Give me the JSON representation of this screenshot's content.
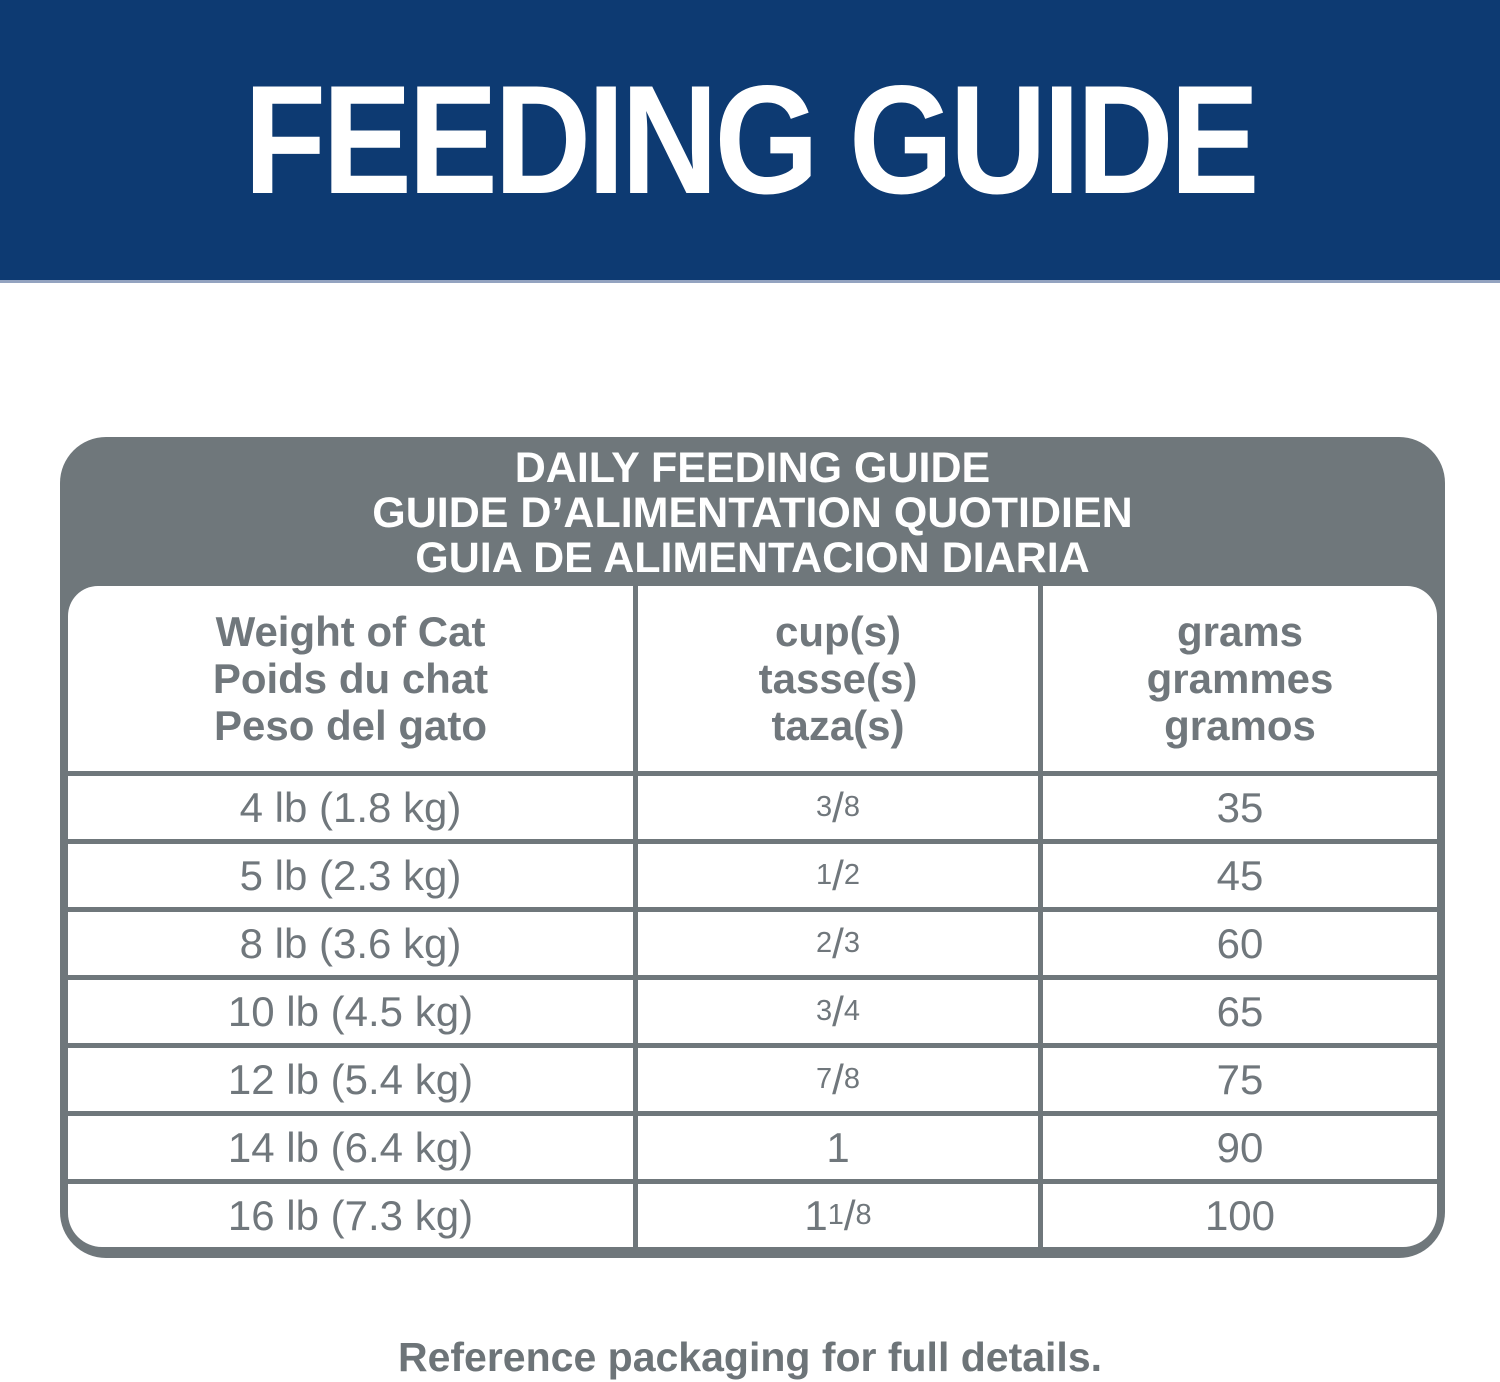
{
  "banner": {
    "title": "FEEDING GUIDE"
  },
  "table": {
    "title": {
      "en": "DAILY FEEDING GUIDE",
      "fr": "GUIDE D’ALIMENTATION QUOTIDIEN",
      "es": "GUIA DE ALIMENTACION DIARIA"
    },
    "headers": {
      "weight": [
        "Weight of Cat",
        "Poids du chat",
        "Peso del gato"
      ],
      "cups": [
        "cup(s)",
        "tasse(s)",
        "taza(s)"
      ],
      "grams": [
        "grams",
        "grammes",
        "gramos"
      ]
    },
    "rows": [
      {
        "weight": "4 lb (1.8 kg)",
        "cups": {
          "pre": "",
          "num": "3",
          "slash": "/",
          "den": "8"
        },
        "grams": "35"
      },
      {
        "weight": "5 lb (2.3 kg)",
        "cups": {
          "pre": "",
          "num": "1",
          "slash": "/",
          "den": "2"
        },
        "grams": "45"
      },
      {
        "weight": "8 lb (3.6 kg)",
        "cups": {
          "pre": "",
          "num": "2",
          "slash": "/",
          "den": "3"
        },
        "grams": "60"
      },
      {
        "weight": "10 lb (4.5 kg)",
        "cups": {
          "pre": "",
          "num": "3",
          "slash": "/",
          "den": "4"
        },
        "grams": "65"
      },
      {
        "weight": "12 lb (5.4 kg)",
        "cups": {
          "pre": "",
          "num": "7",
          "slash": "/",
          "den": "8"
        },
        "grams": "75"
      },
      {
        "weight": "14 lb (6.4 kg)",
        "cups": {
          "pre": "1",
          "num": "",
          "slash": "",
          "den": ""
        },
        "grams": "90"
      },
      {
        "weight": "16 lb (7.3 kg)",
        "cups": {
          "pre": "1 ",
          "num": "1",
          "slash": "/",
          "den": "8"
        },
        "grams": "100"
      }
    ]
  },
  "footer": {
    "note": "Reference packaging for full details."
  },
  "colors": {
    "banner_blue": "#0d3a72",
    "banner_edge_line": "#93a3c0",
    "table_gray": "#6f777b",
    "table_text_gray": "#70777c",
    "footer_text_gray": "#6d7478",
    "white": "#ffffff"
  }
}
